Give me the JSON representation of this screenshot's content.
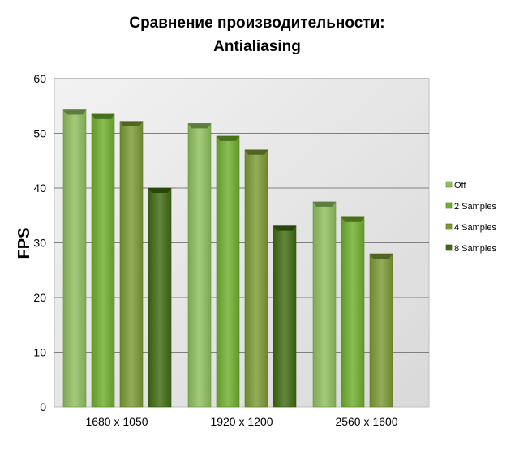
{
  "chart_data": {
    "type": "bar",
    "title_lines": [
      "Сравнение производительности:",
      "Antialiasing"
    ],
    "ylabel": "FPS",
    "xlabel": "",
    "categories": [
      "1680 x 1050",
      "1920 x 1200",
      "2560 x 1600"
    ],
    "ylim": [
      0,
      60
    ],
    "yticks": [
      0,
      10,
      20,
      30,
      40,
      50,
      60
    ],
    "grid": true,
    "legend_position": "right",
    "series": [
      {
        "name": "Off",
        "values": [
          54.3,
          51.8,
          37.5
        ],
        "color": "#8fbf5e"
      },
      {
        "name": "2 Samples",
        "values": [
          53.5,
          49.5,
          34.7
        ],
        "color": "#6fae2e"
      },
      {
        "name": "4 Samples",
        "values": [
          52.2,
          47.0,
          28.0
        ],
        "color": "#7c9a35"
      },
      {
        "name": "8 Samples",
        "values": [
          40.0,
          33.1,
          null
        ],
        "color": "#3f6b12"
      }
    ]
  }
}
